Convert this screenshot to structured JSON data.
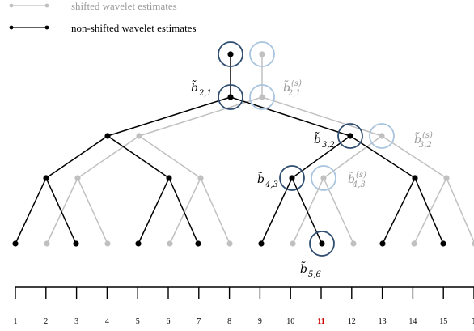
{
  "legend": [
    {
      "label": "shifted wavelet estimates",
      "color": "#c0c0c0"
    },
    {
      "label": "non-shifted wavelet estimates",
      "color": "#000000"
    }
  ],
  "colors": {
    "black_tree": "#000000",
    "gray_tree": "#c0c0c0",
    "dark_circle": "#2f4d70",
    "light_circle": "#a9c4de",
    "highlight": "#cc0000",
    "gray_label": "#9a9a9a"
  },
  "labels": [
    {
      "id": "b21",
      "text": "b̃",
      "sub": "2,1",
      "sup": "",
      "tone": "black"
    },
    {
      "id": "b21s",
      "text": "b̃",
      "sub": "2,1",
      "sup": "(s)",
      "tone": "gray"
    },
    {
      "id": "b32",
      "text": "b̃",
      "sub": "3,2",
      "sup": "",
      "tone": "black"
    },
    {
      "id": "b32s",
      "text": "b̃",
      "sub": "3,2",
      "sup": "(s)",
      "tone": "gray"
    },
    {
      "id": "b43",
      "text": "b̃",
      "sub": "4,3",
      "sup": "",
      "tone": "black"
    },
    {
      "id": "b43s",
      "text": "b̃",
      "sub": "4,3",
      "sup": "(s)",
      "tone": "gray"
    },
    {
      "id": "b56",
      "text": "b̃",
      "sub": "5,6",
      "sup": "",
      "tone": "black"
    }
  ],
  "axis": {
    "ticks": [
      "1",
      "2",
      "3",
      "4",
      "5",
      "6",
      "7",
      "8",
      "9",
      "10",
      "11",
      "12",
      "13",
      "14",
      "15",
      "T"
    ],
    "highlight_tick": "11"
  }
}
